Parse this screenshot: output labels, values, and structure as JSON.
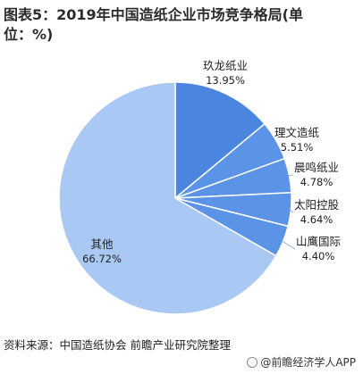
{
  "title": "图表5：2019年中国造纸企业市场竞争格局(单位：%)",
  "source": "资料来源：中国造纸协会 前瞻产业研究院整理",
  "brand": "@前瞻经济学人APP",
  "colors": {
    "dark_slice": "#4a86e0",
    "mid_slice": "#5b93e6",
    "light_slice": "#a9c8f3",
    "edge": "#ffffff",
    "leader": "#7fa6de"
  },
  "chart_data": {
    "type": "pie",
    "title": "图表5：2019年中国造纸企业市场竞争格局(单位：%)",
    "slices": [
      {
        "label": "玖龙纸业",
        "value": 13.95,
        "display": "13.95%"
      },
      {
        "label": "理文造纸",
        "value": 5.51,
        "display": "5.51%"
      },
      {
        "label": "晨鸣纸业",
        "value": 4.78,
        "display": "4.78%"
      },
      {
        "label": "太阳控股",
        "value": 4.64,
        "display": "4.64%"
      },
      {
        "label": "山鹰国际",
        "value": 4.4,
        "display": "4.40%"
      },
      {
        "label": "其他",
        "value": 66.72,
        "display": "66.72%"
      }
    ]
  }
}
